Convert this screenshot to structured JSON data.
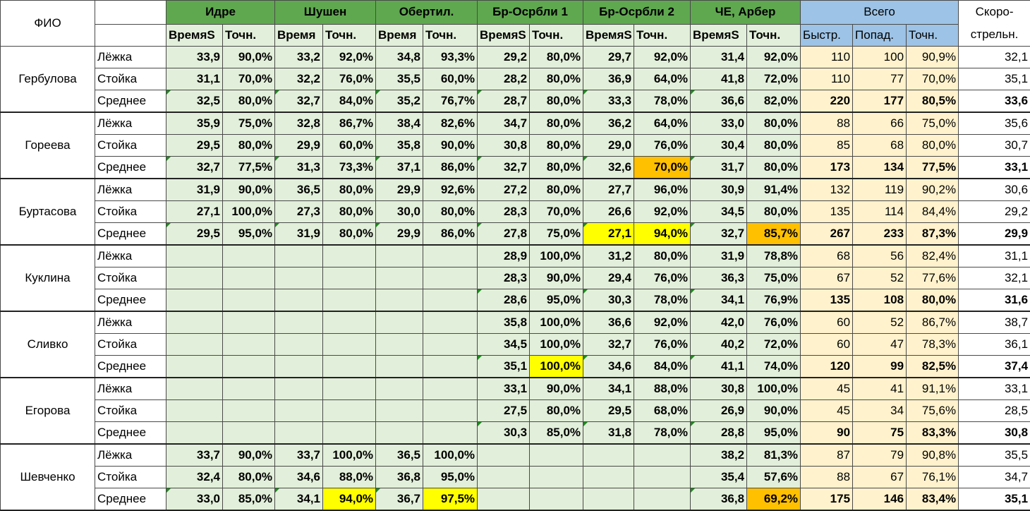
{
  "header": {
    "fio": "ФИО",
    "groups": [
      "Идре",
      "Шушен",
      "Обертил.",
      "Бр-Осрбли 1",
      "Бр-Осрбли 2",
      "ЧЕ, Арбер"
    ],
    "time_label": "Время",
    "time_label_cut": "S",
    "acc_label": "Точн.",
    "total": "Всего",
    "total_sub": [
      "Быстр.",
      "Попад.",
      "Точн."
    ],
    "speed_l1": "Скоро-",
    "speed_l2": "стрельн."
  },
  "colors": {
    "group_header": "#5fa84f",
    "group_cells": "#e2efda",
    "total_header": "#9dc3e6",
    "total_cells": "#fff2cc",
    "highlight_yellow": "#ffff00",
    "highlight_orange": "#ffc000",
    "red_text": "#ff0000"
  },
  "athletes": [
    {
      "name": "Гербулова",
      "rows": [
        {
          "label": "Лёжка",
          "groups": [
            [
              "33,9",
              "90,0%"
            ],
            [
              "33,2",
              "92,0%"
            ],
            [
              "34,8",
              "93,3%"
            ],
            [
              "29,2",
              "80,0%"
            ],
            [
              "29,7",
              "92,0%"
            ],
            [
              "31,4",
              "92,0%"
            ]
          ],
          "total": [
            "110",
            "100",
            "90,9%"
          ],
          "speed": "32,1"
        },
        {
          "label": "Стойка",
          "groups": [
            [
              "31,1",
              "70,0%"
            ],
            [
              "32,2",
              "76,0%"
            ],
            [
              "35,5",
              "60,0%"
            ],
            [
              "28,2",
              "80,0%"
            ],
            [
              "36,9",
              "64,0%"
            ],
            [
              "41,8",
              "72,0%"
            ]
          ],
          "total": [
            "110",
            "77",
            "70,0%"
          ],
          "speed": "35,1"
        },
        {
          "label": "Среднее",
          "groups": [
            [
              "32,5",
              "80,0%"
            ],
            [
              "32,7",
              "84,0%"
            ],
            [
              "35,2",
              "76,7%"
            ],
            [
              "28,7",
              "80,0%"
            ],
            [
              "33,3",
              "78,0%"
            ],
            [
              "36,6",
              "82,0%"
            ]
          ],
          "total": [
            "220",
            "177",
            "80,5%"
          ],
          "speed": "33,6"
        }
      ]
    },
    {
      "name": "Гореева",
      "rows": [
        {
          "label": "Лёжка",
          "groups": [
            [
              "35,9",
              "75,0%"
            ],
            [
              "32,8",
              "86,7%"
            ],
            [
              "38,4",
              "82,6%"
            ],
            [
              "34,7",
              "80,0%"
            ],
            [
              "36,2",
              "64,0%"
            ],
            [
              "33,0",
              "80,0%"
            ]
          ],
          "total": [
            "88",
            "66",
            "75,0%"
          ],
          "speed": "35,6"
        },
        {
          "label": "Стойка",
          "groups": [
            [
              "29,5",
              "80,0%"
            ],
            [
              "29,9",
              "60,0%"
            ],
            [
              "35,8",
              "90,0%"
            ],
            [
              "30,8",
              "80,0%"
            ],
            [
              "29,0",
              "76,0%"
            ],
            [
              "30,4",
              "80,0%"
            ]
          ],
          "total": [
            "85",
            "68",
            "80,0%"
          ],
          "speed": "30,7"
        },
        {
          "label": "Среднее",
          "groups": [
            [
              "32,7",
              "77,5%"
            ],
            [
              "31,3",
              "73,3%"
            ],
            [
              "37,1",
              "86,0%"
            ],
            [
              "32,7",
              "80,0%"
            ],
            [
              "32,6",
              "70,0%"
            ],
            [
              "31,7",
              "80,0%"
            ]
          ],
          "total": [
            "173",
            "134",
            "77,5%"
          ],
          "speed": "33,1"
        }
      ]
    },
    {
      "name": "Буртасова",
      "rows": [
        {
          "label": "Лёжка",
          "groups": [
            [
              "31,9",
              "90,0%"
            ],
            [
              "36,5",
              "80,0%"
            ],
            [
              "29,9",
              "92,6%"
            ],
            [
              "27,2",
              "80,0%"
            ],
            [
              "27,7",
              "96,0%"
            ],
            [
              "30,9",
              "91,4%"
            ]
          ],
          "total": [
            "132",
            "119",
            "90,2%"
          ],
          "speed": "30,6"
        },
        {
          "label": "Стойка",
          "groups": [
            [
              "27,1",
              "100,0%"
            ],
            [
              "27,3",
              "80,0%"
            ],
            [
              "30,0",
              "80,0%"
            ],
            [
              "28,3",
              "70,0%"
            ],
            [
              "26,6",
              "92,0%"
            ],
            [
              "34,5",
              "80,0%"
            ]
          ],
          "total": [
            "135",
            "114",
            "84,4%"
          ],
          "speed": "29,2"
        },
        {
          "label": "Среднее",
          "groups": [
            [
              "29,5",
              "95,0%"
            ],
            [
              "31,9",
              "80,0%"
            ],
            [
              "29,9",
              "86,0%"
            ],
            [
              "27,8",
              "75,0%"
            ],
            [
              "27,1",
              "94,0%"
            ],
            [
              "32,7",
              "85,7%"
            ]
          ],
          "total": [
            "267",
            "233",
            "87,3%"
          ],
          "speed": "29,9"
        }
      ]
    },
    {
      "name": "Куклина",
      "rows": [
        {
          "label": "Лёжка",
          "groups": [
            [
              "",
              ""
            ],
            [
              "",
              ""
            ],
            [
              "",
              ""
            ],
            [
              "28,9",
              "100,0%"
            ],
            [
              "31,2",
              "80,0%"
            ],
            [
              "31,9",
              "78,8%"
            ]
          ],
          "total": [
            "68",
            "56",
            "82,4%"
          ],
          "speed": "31,1"
        },
        {
          "label": "Стойка",
          "groups": [
            [
              "",
              ""
            ],
            [
              "",
              ""
            ],
            [
              "",
              ""
            ],
            [
              "28,3",
              "90,0%"
            ],
            [
              "29,4",
              "76,0%"
            ],
            [
              "36,3",
              "75,0%"
            ]
          ],
          "total": [
            "67",
            "52",
            "77,6%"
          ],
          "speed": "32,1"
        },
        {
          "label": "Среднее",
          "groups": [
            [
              "",
              ""
            ],
            [
              "",
              ""
            ],
            [
              "",
              ""
            ],
            [
              "28,6",
              "95,0%"
            ],
            [
              "30,3",
              "78,0%"
            ],
            [
              "34,1",
              "76,9%"
            ]
          ],
          "total": [
            "135",
            "108",
            "80,0%"
          ],
          "speed": "31,6"
        }
      ]
    },
    {
      "name": "Сливко",
      "rows": [
        {
          "label": "Лёжка",
          "groups": [
            [
              "",
              ""
            ],
            [
              "",
              ""
            ],
            [
              "",
              ""
            ],
            [
              "35,8",
              "100,0%"
            ],
            [
              "36,6",
              "92,0%"
            ],
            [
              "42,0",
              "76,0%"
            ]
          ],
          "total": [
            "60",
            "52",
            "86,7%"
          ],
          "speed": "38,7"
        },
        {
          "label": "Стойка",
          "groups": [
            [
              "",
              ""
            ],
            [
              "",
              ""
            ],
            [
              "",
              ""
            ],
            [
              "34,5",
              "100,0%"
            ],
            [
              "32,7",
              "76,0%"
            ],
            [
              "40,2",
              "72,0%"
            ]
          ],
          "total": [
            "60",
            "47",
            "78,3%"
          ],
          "speed": "36,1"
        },
        {
          "label": "Среднее",
          "groups": [
            [
              "",
              ""
            ],
            [
              "",
              ""
            ],
            [
              "",
              ""
            ],
            [
              "35,1",
              "100,0%"
            ],
            [
              "34,6",
              "84,0%"
            ],
            [
              "41,1",
              "74,0%"
            ]
          ],
          "total": [
            "120",
            "99",
            "82,5%"
          ],
          "speed": "37,4"
        }
      ]
    },
    {
      "name": "Егорова",
      "rows": [
        {
          "label": "Лёжка",
          "groups": [
            [
              "",
              ""
            ],
            [
              "",
              ""
            ],
            [
              "",
              ""
            ],
            [
              "33,1",
              "90,0%"
            ],
            [
              "34,1",
              "88,0%"
            ],
            [
              "30,8",
              "100,0%"
            ]
          ],
          "total": [
            "45",
            "41",
            "91,1%"
          ],
          "speed": "33,1"
        },
        {
          "label": "Стойка",
          "groups": [
            [
              "",
              ""
            ],
            [
              "",
              ""
            ],
            [
              "",
              ""
            ],
            [
              "27,5",
              "80,0%"
            ],
            [
              "29,5",
              "68,0%"
            ],
            [
              "26,9",
              "90,0%"
            ]
          ],
          "total": [
            "45",
            "34",
            "75,6%"
          ],
          "speed": "28,5"
        },
        {
          "label": "Среднее",
          "groups": [
            [
              "",
              ""
            ],
            [
              "",
              ""
            ],
            [
              "",
              ""
            ],
            [
              "30,3",
              "85,0%"
            ],
            [
              "31,8",
              "78,0%"
            ],
            [
              "28,8",
              "95,0%"
            ]
          ],
          "total": [
            "90",
            "75",
            "83,3%"
          ],
          "speed": "30,8"
        }
      ]
    },
    {
      "name": "Шевченко",
      "rows": [
        {
          "label": "Лёжка",
          "groups": [
            [
              "33,7",
              "90,0%"
            ],
            [
              "33,7",
              "100,0%"
            ],
            [
              "36,5",
              "100,0%"
            ],
            [
              "",
              ""
            ],
            [
              "",
              ""
            ],
            [
              "38,2",
              "81,3%"
            ]
          ],
          "total": [
            "87",
            "79",
            "90,8%"
          ],
          "speed": "35,5"
        },
        {
          "label": "Стойка",
          "groups": [
            [
              "32,4",
              "80,0%"
            ],
            [
              "34,6",
              "88,0%"
            ],
            [
              "36,8",
              "95,0%"
            ],
            [
              "",
              ""
            ],
            [
              "",
              ""
            ],
            [
              "35,4",
              "57,6%"
            ]
          ],
          "total": [
            "88",
            "67",
            "76,1%"
          ],
          "speed": "34,7"
        },
        {
          "label": "Среднее",
          "groups": [
            [
              "33,0",
              "85,0%"
            ],
            [
              "34,1",
              "94,0%"
            ],
            [
              "36,7",
              "97,5%"
            ],
            [
              "",
              ""
            ],
            [
              "",
              ""
            ],
            [
              "36,8",
              "69,2%"
            ]
          ],
          "total": [
            "175",
            "146",
            "83,4%"
          ],
          "speed": "35,1"
        }
      ]
    }
  ],
  "highlights": {
    "red": [
      "2-2-0-t",
      "2-2-0-a",
      "3-0-3-a",
      "3-2-3-a",
      "4-0-3-a",
      "4-1-3-a",
      "4-2-3-a",
      "6-0-1-a",
      "6-0-2-a",
      "5-2-5-a",
      "0-0-total-a",
      "2-0-total-a",
      "5-0-total-a",
      "6-0-total-a"
    ],
    "yellow": [
      "2-2-4-t",
      "2-2-4-a",
      "4-2-3-a",
      "6-2-1-a",
      "6-2-2-a"
    ],
    "orange": [
      "1-2-4-a",
      "2-2-5-a",
      "6-2-5-a"
    ]
  }
}
